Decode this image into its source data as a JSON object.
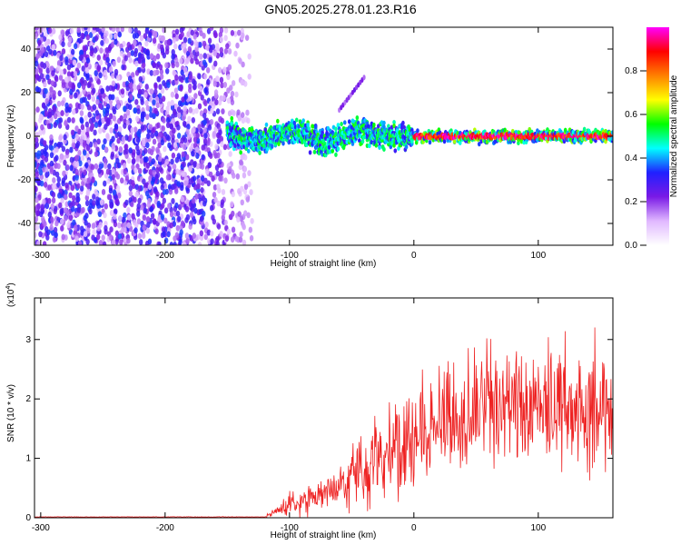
{
  "title": "GN05.2025.278.01.23.R16",
  "chart_data": [
    {
      "type": "heatmap",
      "title": "GN05.2025.278.01.23.R16",
      "xlabel": "Height of straight line (km)",
      "ylabel": "Frequency (Hz)",
      "xlim": [
        -305,
        160
      ],
      "ylim": [
        -50,
        50
      ],
      "xticks": [
        -300,
        -200,
        -100,
        0,
        100
      ],
      "yticks": [
        -40,
        -20,
        0,
        20,
        40
      ],
      "colorbar": {
        "label": "Normalized spectral amplitude",
        "range": [
          0,
          1
        ],
        "ticks": [
          "0.0",
          "0.2",
          "0.4",
          "0.6",
          "0.8"
        ],
        "colors": [
          "#ffffff",
          "#e0b8ff",
          "#7a1ae6",
          "#2020ff",
          "#00ffff",
          "#00ff00",
          "#ffff00",
          "#ff8000",
          "#ff0000",
          "#ff00ff"
        ]
      },
      "features": {
        "noise_region_x": [
          -305,
          -140
        ],
        "noise_frequency_range": [
          -50,
          50
        ],
        "signal_band_center_hz": 0,
        "signal_band_halfwidth_hz": 4,
        "signal_band_x_start": -150,
        "strong_signal_x_start": 0,
        "secondary_streak": {
          "x": [
            -60,
            -40
          ],
          "y": [
            12,
            27
          ]
        }
      }
    },
    {
      "type": "line",
      "title": "",
      "xlabel": "Height of straight line (km)",
      "ylabel": "SNR (10 * v/v)",
      "exponent_label": "(x10",
      "exponent_power": "4",
      "exponent_close": ")",
      "xlim": [
        -305,
        160
      ],
      "ylim": [
        0,
        3.7
      ],
      "xticks": [
        -300,
        -200,
        -100,
        0,
        100
      ],
      "yticks": [
        0,
        1,
        2,
        3
      ],
      "color": "#ee2222",
      "envelope": [
        {
          "x": -305,
          "y": 0.01
        },
        {
          "x": -150,
          "y": 0.01
        },
        {
          "x": -115,
          "y": 0.05
        },
        {
          "x": -100,
          "y": 0.25
        },
        {
          "x": -80,
          "y": 0.35
        },
        {
          "x": -60,
          "y": 0.6
        },
        {
          "x": -40,
          "y": 0.9
        },
        {
          "x": -20,
          "y": 1.1
        },
        {
          "x": 0,
          "y": 1.4
        },
        {
          "x": 20,
          "y": 1.6
        },
        {
          "x": 40,
          "y": 1.75
        },
        {
          "x": 60,
          "y": 1.85
        },
        {
          "x": 80,
          "y": 1.9
        },
        {
          "x": 100,
          "y": 1.9
        },
        {
          "x": 120,
          "y": 1.85
        },
        {
          "x": 140,
          "y": 1.85
        },
        {
          "x": 160,
          "y": 1.9
        }
      ]
    }
  ]
}
